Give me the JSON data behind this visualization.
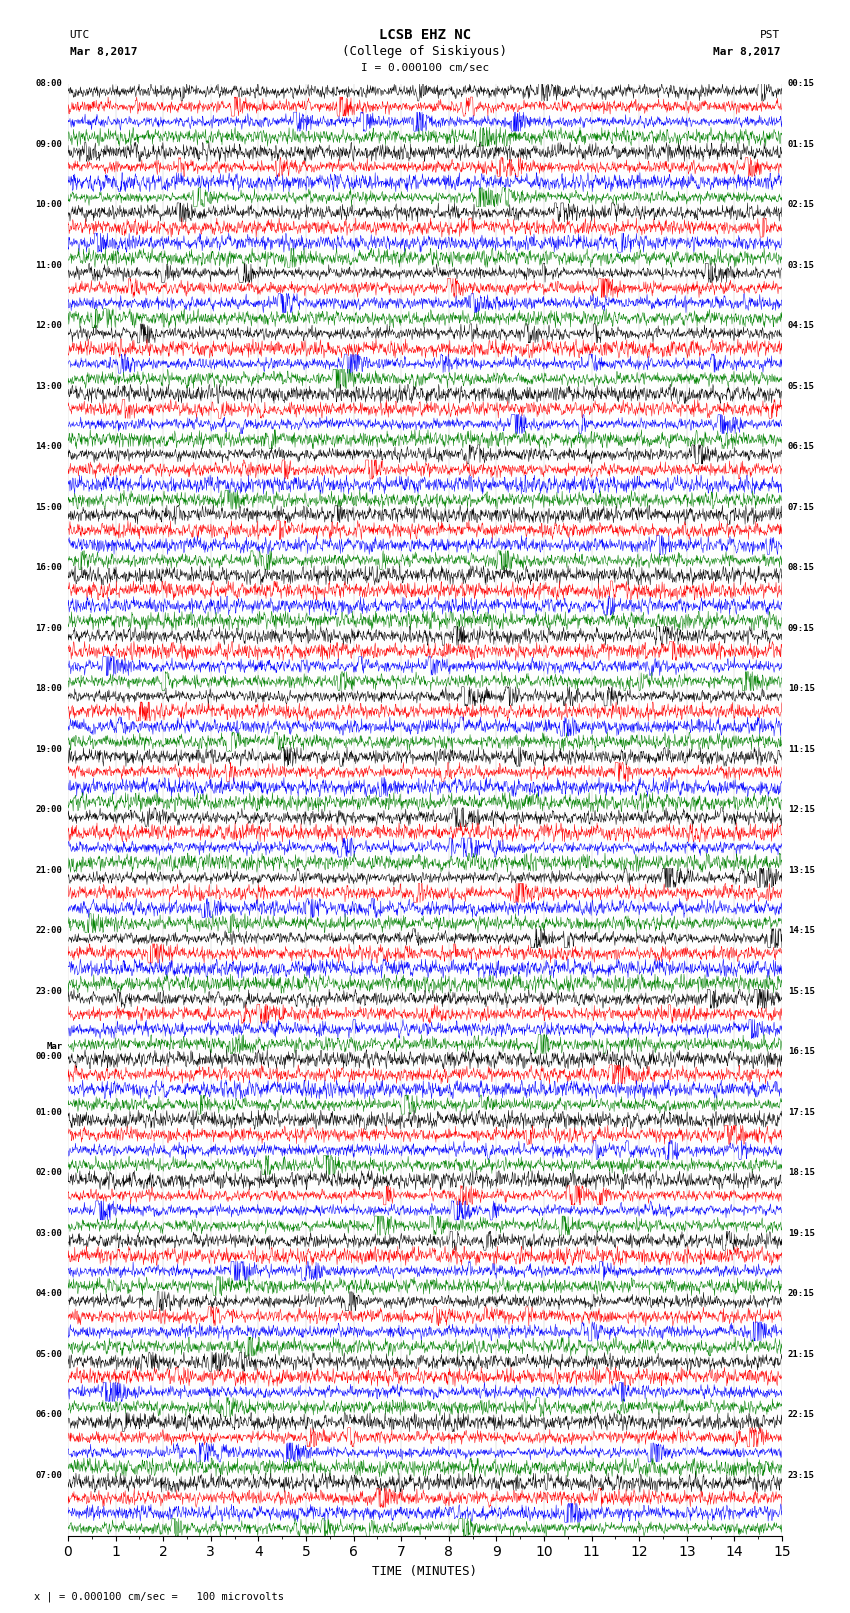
{
  "title_line1": "LCSB EHZ NC",
  "title_line2": "(College of Siskiyous)",
  "scale_label": "I = 0.000100 cm/sec",
  "utc_label": "UTC",
  "utc_date": "Mar 8,2017",
  "pst_label": "PST",
  "pst_date": "Mar 8,2017",
  "bottom_note": "x | = 0.000100 cm/sec =   100 microvolts",
  "xlabel": "TIME (MINUTES)",
  "left_labels": [
    [
      "08:00",
      0
    ],
    [
      "09:00",
      4
    ],
    [
      "10:00",
      8
    ],
    [
      "11:00",
      12
    ],
    [
      "12:00",
      16
    ],
    [
      "13:00",
      20
    ],
    [
      "14:00",
      24
    ],
    [
      "15:00",
      28
    ],
    [
      "16:00",
      32
    ],
    [
      "17:00",
      36
    ],
    [
      "18:00",
      40
    ],
    [
      "19:00",
      44
    ],
    [
      "20:00",
      48
    ],
    [
      "21:00",
      52
    ],
    [
      "22:00",
      56
    ],
    [
      "23:00",
      60
    ],
    [
      "Mar\n00:00",
      64
    ],
    [
      "01:00",
      68
    ],
    [
      "02:00",
      72
    ],
    [
      "03:00",
      76
    ],
    [
      "04:00",
      80
    ],
    [
      "05:00",
      84
    ],
    [
      "06:00",
      88
    ],
    [
      "07:00",
      92
    ]
  ],
  "right_labels": [
    [
      "00:15",
      0
    ],
    [
      "01:15",
      4
    ],
    [
      "02:15",
      8
    ],
    [
      "03:15",
      12
    ],
    [
      "04:15",
      16
    ],
    [
      "05:15",
      20
    ],
    [
      "06:15",
      24
    ],
    [
      "07:15",
      28
    ],
    [
      "08:15",
      32
    ],
    [
      "09:15",
      36
    ],
    [
      "10:15",
      40
    ],
    [
      "11:15",
      44
    ],
    [
      "12:15",
      48
    ],
    [
      "13:15",
      52
    ],
    [
      "14:15",
      56
    ],
    [
      "15:15",
      60
    ],
    [
      "16:15",
      64
    ],
    [
      "17:15",
      68
    ],
    [
      "18:15",
      72
    ],
    [
      "19:15",
      76
    ],
    [
      "20:15",
      80
    ],
    [
      "21:15",
      84
    ],
    [
      "22:15",
      88
    ],
    [
      "23:15",
      92
    ]
  ],
  "colors": [
    "black",
    "red",
    "blue",
    "green"
  ],
  "background_color": "white",
  "num_traces": 96,
  "minutes": 15,
  "samples_per_trace": 1800,
  "base_noise_std": 0.28,
  "hf_noise_std": 0.18,
  "trace_amplitude": 0.42,
  "seed": 42
}
